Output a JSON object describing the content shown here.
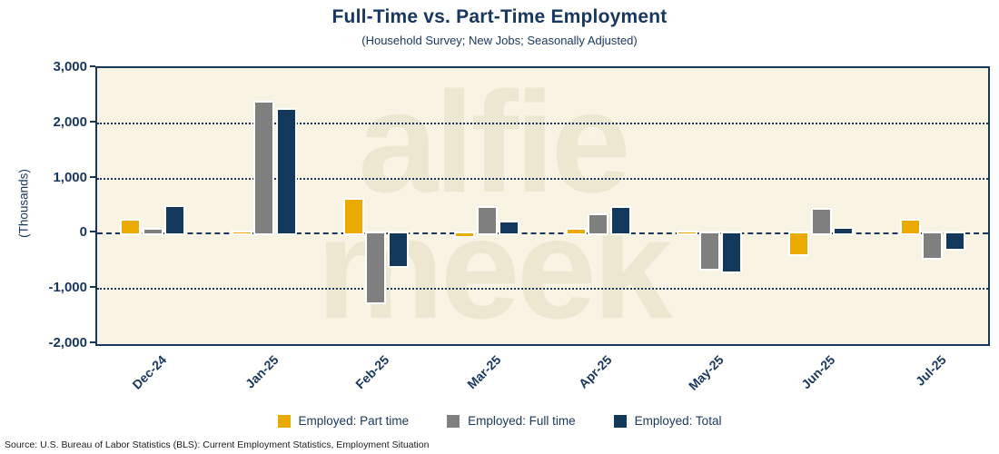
{
  "header": {
    "title": "Full-Time vs. Part-Time Employment",
    "subtitle": "(Household Survey; New Jobs; Seasonally Adjusted)"
  },
  "watermark": {
    "line1": "alfie",
    "line2": "meek"
  },
  "source_note": "Source: U.S. Bureau of Labor Statistics (BLS): Current Employment Statistics, Employment Situation",
  "colors": {
    "part_time": "#EAAA00",
    "full_time": "#7F7F7F",
    "total": "#12395B",
    "axis": "#17375E",
    "plot_background": "#F8F3E2",
    "watermark": "#EDE6D1"
  },
  "chart_data": {
    "type": "bar",
    "title": "Full-Time vs. Part-Time Employment",
    "subtitle": "(Household Survey; New Jobs; Seasonally Adjusted)",
    "ylabel": "(Thousands)",
    "xlabel": "",
    "ylim": [
      -2000,
      3000
    ],
    "y_ticks": [
      3000,
      2000,
      1000,
      0,
      -1000,
      -2000
    ],
    "grid": "horizontal-dotted, zero-line dashed",
    "legend_position": "bottom",
    "categories": [
      "Dec-24",
      "Jan-25",
      "Feb-25",
      "Mar-25",
      "Apr-25",
      "May-25",
      "Jun-25",
      "Jul-25"
    ],
    "series": [
      {
        "name": "Employed: Part time",
        "color_key": "part_time",
        "values": [
          230,
          10,
          610,
          -45,
          65,
          25,
          -365,
          240
        ]
      },
      {
        "name": "Employed: Full time",
        "color_key": "full_time",
        "values": [
          80,
          2380,
          -1240,
          460,
          340,
          -640,
          430,
          -435
        ]
      },
      {
        "name": "Employed: Total",
        "color_key": "total",
        "values": [
          480,
          2240,
          -590,
          200,
          460,
          -690,
          95,
          -270
        ]
      }
    ]
  }
}
